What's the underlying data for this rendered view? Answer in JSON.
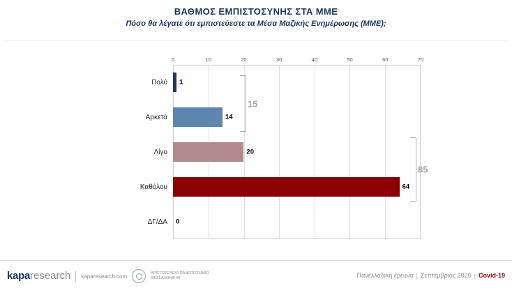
{
  "chart_data": {
    "type": "bar",
    "orientation": "horizontal",
    "title": "ΒΑΘΜΟΣ ΕΜΠΙΣΤΟΣΥΝΗΣ ΣΤΑ ΜΜΕ",
    "subtitle": "Πόσο θα λέγατε ότι εμπιστεύεστε τα Μέσα Μαζικής Ενημέρωσης (ΜΜΕ);",
    "categories": [
      "Πολύ",
      "Αρκετά",
      "Λίγο",
      "Καθόλου",
      "ΔΓ/ΔΑ"
    ],
    "values": [
      1,
      14,
      20,
      64,
      0
    ],
    "colors": [
      "#1F3864",
      "#5E87AF",
      "#B18B8B",
      "#8B0000",
      "#1F3864"
    ],
    "xlim": [
      0,
      70
    ],
    "ticks": [
      0,
      10,
      20,
      30,
      40,
      50,
      60,
      70
    ],
    "grid": true,
    "legend": null,
    "annotations": [
      {
        "label": "15",
        "covers": [
          "Πολύ",
          "Αρκετά"
        ]
      },
      {
        "label": "85",
        "covers": [
          "Λίγο",
          "Καθόλου"
        ]
      }
    ]
  },
  "footer": {
    "logo_text_bold": "kapa",
    "logo_text_light": "research",
    "site": "kaparesearch.com",
    "university_line1": "ΑΡΙΣΤΟΤΕΛΕΙΟ ΠΑΝΕΠΙΣΤΗΜΙΟ",
    "university_line2": "ΘΕΣΣΑΛΟΝΙΚΗΣ",
    "survey": "Πανελλαδική έρευνα",
    "date": "Σεπτέμβριος 2020",
    "tag": "Covid-19",
    "pipe": "|"
  }
}
